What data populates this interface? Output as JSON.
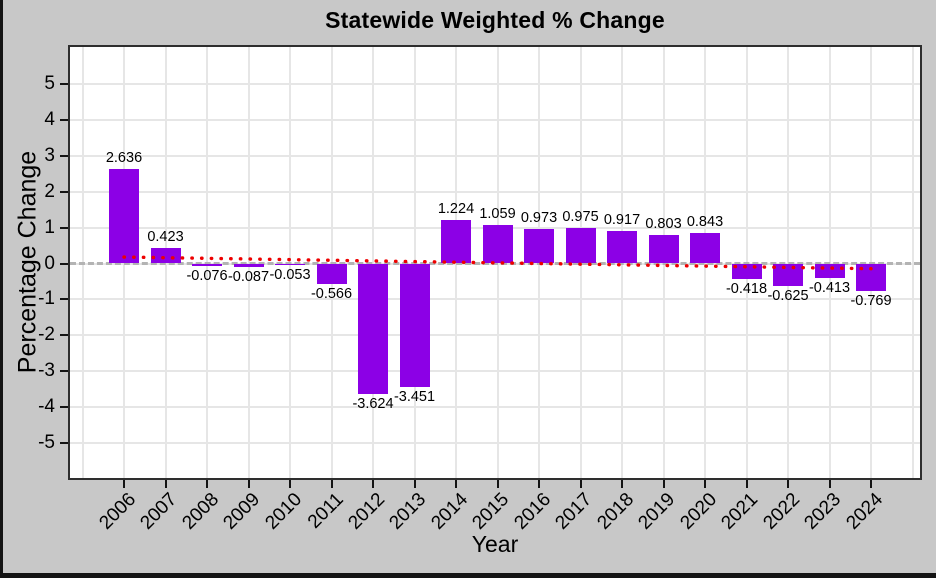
{
  "chart_data": {
    "type": "bar",
    "title": "Statewide Weighted % Change",
    "xlabel": "Year",
    "ylabel": "Percentage Change",
    "categories": [
      "2006",
      "2007",
      "2008",
      "2009",
      "2010",
      "2011",
      "2012",
      "2013",
      "2014",
      "2015",
      "2016",
      "2017",
      "2018",
      "2019",
      "2020",
      "2021",
      "2022",
      "2023",
      "2024"
    ],
    "values": [
      2.636,
      0.423,
      -0.076,
      -0.087,
      -0.053,
      -0.566,
      -3.624,
      -3.451,
      1.224,
      1.059,
      0.973,
      0.975,
      0.917,
      0.803,
      0.843,
      -0.418,
      -0.625,
      -0.413,
      -0.769
    ],
    "bar_labels": [
      "2.636",
      "0.423",
      "-0.076",
      "-0.087",
      "-0.053",
      "-0.566",
      "-3.624",
      "-3.451",
      "1.224",
      "1.059",
      "0.973",
      "0.975",
      "0.917",
      "0.803",
      "0.843",
      "-0.418",
      "-0.625",
      "-0.413",
      "-0.769"
    ],
    "yticks": [
      5,
      4,
      3,
      2,
      1,
      0,
      -1,
      -2,
      -3,
      -4,
      -5
    ],
    "ylim": [
      -6,
      6
    ],
    "grid": true,
    "legend": "none",
    "zero_line": {
      "y": 0,
      "style": "dashed",
      "color": "#b3b3b3"
    },
    "trend_line": {
      "style": "dotted",
      "color": "#ee0000",
      "start_value": 0.18,
      "end_value": -0.145
    },
    "colors": {
      "bar": "#8c00e6",
      "panel_background": "#ffffff",
      "outer_background": "#c8c8c8",
      "gridline": "#e6e6e6",
      "text": "#000000"
    }
  }
}
